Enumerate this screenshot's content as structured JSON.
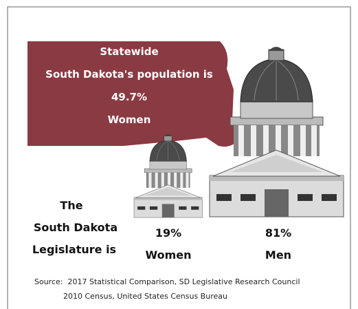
{
  "statewide": {
    "lines": [
      "Statewide",
      "South Dakota's population is",
      "49.7%",
      "Women"
    ]
  },
  "legislature": {
    "lines": [
      "The",
      "South Dakota",
      "Legislature is"
    ]
  },
  "groups": [
    {
      "percent": "19%",
      "label": "Women"
    },
    {
      "percent": "81%",
      "label": "Men"
    }
  ],
  "source": [
    "Source:  2017 Statistical Comparison, SD Legislative Research Council",
    "2010 Census, United States Census Bureau"
  ]
}
